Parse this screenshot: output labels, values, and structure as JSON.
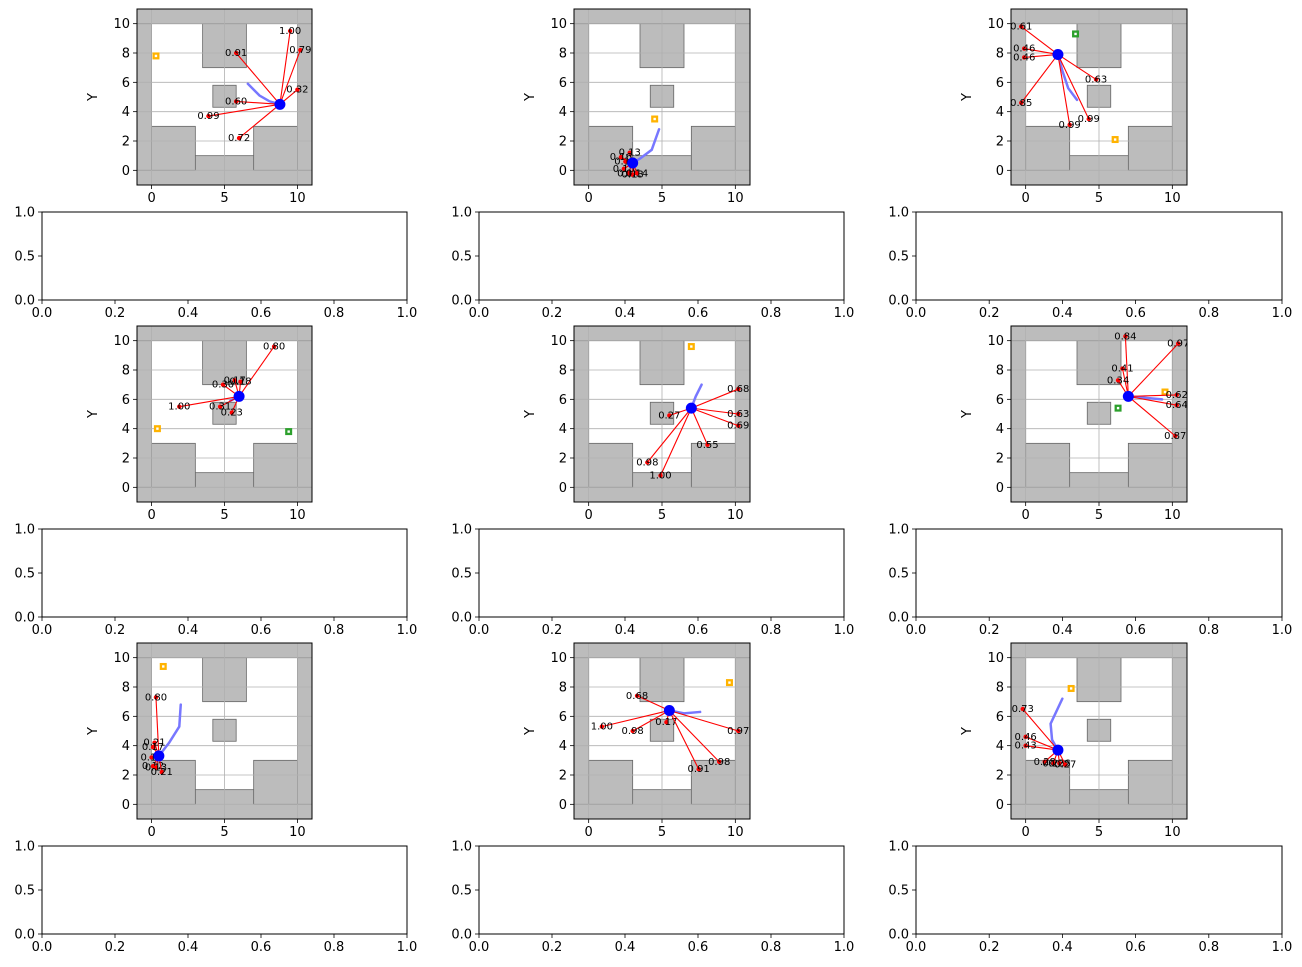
{
  "figure": {
    "colors": {
      "obstacle": "#bcbcbc",
      "obstacle_edge": "#666666",
      "robot": "#0000ff",
      "ray": "#ff0000",
      "trail": "#7777ff",
      "goal": "#ffb300",
      "goal_alt": "#2ca02c",
      "grid": "#b0b0b0"
    },
    "obstacles_common": [
      [
        -1,
        -1,
        12,
        1
      ],
      [
        -1,
        10,
        12,
        11
      ],
      [
        -1,
        0,
        0,
        10
      ],
      [
        10,
        0,
        11,
        10
      ],
      [
        0,
        0,
        3,
        3
      ],
      [
        7,
        0,
        10,
        3
      ],
      [
        3.5,
        7,
        6.5,
        10
      ],
      [
        4.2,
        4.3,
        5.8,
        5.8
      ]
    ]
  },
  "chart_data": [
    {
      "type": "scatter",
      "ylabel": "Y",
      "xlim": [
        -1,
        11
      ],
      "ylim": [
        -1,
        11
      ],
      "xticks": [
        "0",
        "5",
        "10"
      ],
      "yticks": [
        "0",
        "2",
        "4",
        "6",
        "8",
        "10"
      ],
      "grid": true,
      "robot": [
        8.8,
        4.5
      ],
      "goals": [
        {
          "x": 0.3,
          "y": 7.8,
          "color": "goal"
        }
      ],
      "trail": [
        [
          6.6,
          5.9
        ],
        [
          7.4,
          5.1
        ],
        [
          8.1,
          4.7
        ],
        [
          8.8,
          4.5
        ]
      ],
      "rays": [
        {
          "x": 9.5,
          "y": 9.5,
          "label": "1.00"
        },
        {
          "x": 5.8,
          "y": 8.0,
          "label": "0.91"
        },
        {
          "x": 10.2,
          "y": 8.2,
          "label": "0.79"
        },
        {
          "x": 10.0,
          "y": 5.5,
          "label": "0.32"
        },
        {
          "x": 5.8,
          "y": 4.7,
          "label": "0.60"
        },
        {
          "x": 3.9,
          "y": 3.7,
          "label": "0.99"
        },
        {
          "x": 6.0,
          "y": 2.2,
          "label": "0.72"
        }
      ]
    },
    {
      "type": "empty",
      "xlim": [
        0,
        1
      ],
      "ylim": [
        0,
        1
      ],
      "xticks": [
        "0.0",
        "0.2",
        "0.4",
        "0.6",
        "0.8",
        "1.0"
      ],
      "yticks": [
        "0.0",
        "0.5",
        "1.0"
      ]
    },
    {
      "type": "scatter",
      "ylabel": "Y",
      "xlim": [
        -1,
        11
      ],
      "ylim": [
        -1,
        11
      ],
      "xticks": [
        "0",
        "5",
        "10"
      ],
      "yticks": [
        "0",
        "2",
        "4",
        "6",
        "8",
        "10"
      ],
      "grid": true,
      "robot": [
        3.0,
        0.5
      ],
      "goals": [
        {
          "x": 4.5,
          "y": 3.5,
          "color": "goal"
        }
      ],
      "trail": [
        [
          4.8,
          2.8
        ],
        [
          4.3,
          1.4
        ],
        [
          3.5,
          0.8
        ],
        [
          3.0,
          0.5
        ]
      ],
      "rays": [
        {
          "x": 2.8,
          "y": 1.2,
          "label": "0.13"
        },
        {
          "x": 2.2,
          "y": 0.9,
          "label": "0.16"
        },
        {
          "x": 2.5,
          "y": 0.6,
          "label": "0.13"
        },
        {
          "x": 2.4,
          "y": 0.1,
          "label": "0.15"
        },
        {
          "x": 2.7,
          "y": -0.2,
          "label": "0.14"
        },
        {
          "x": 3.0,
          "y": -0.3,
          "label": "0.13"
        },
        {
          "x": 3.3,
          "y": -0.2,
          "label": "0.14"
        }
      ]
    },
    {
      "type": "empty",
      "xlim": [
        0,
        1
      ],
      "ylim": [
        0,
        1
      ],
      "xticks": [
        "0.0",
        "0.2",
        "0.4",
        "0.6",
        "0.8",
        "1.0"
      ],
      "yticks": [
        "0.0",
        "0.5",
        "1.0"
      ]
    },
    {
      "type": "scatter",
      "ylabel": "Y",
      "xlim": [
        -1,
        11
      ],
      "ylim": [
        -1,
        11
      ],
      "xticks": [
        "0",
        "5",
        "10"
      ],
      "yticks": [
        "0",
        "2",
        "4",
        "6",
        "8",
        "10"
      ],
      "grid": true,
      "robot": [
        2.2,
        7.9
      ],
      "goals": [
        {
          "x": 3.4,
          "y": 9.3,
          "color": "goal_alt"
        },
        {
          "x": 6.1,
          "y": 2.1,
          "color": "goal"
        }
      ],
      "trail": [
        [
          3.5,
          4.8
        ],
        [
          2.9,
          5.6
        ],
        [
          2.5,
          6.8
        ],
        [
          2.2,
          7.9
        ]
      ],
      "rays": [
        {
          "x": -0.3,
          "y": 9.8,
          "label": "0.61"
        },
        {
          "x": -0.1,
          "y": 8.3,
          "label": "0.46"
        },
        {
          "x": -0.1,
          "y": 7.7,
          "label": "0.46"
        },
        {
          "x": 4.8,
          "y": 6.2,
          "label": "0.63"
        },
        {
          "x": -0.3,
          "y": 4.6,
          "label": "0.85"
        },
        {
          "x": 4.3,
          "y": 3.5,
          "label": "0.99"
        },
        {
          "x": 3.0,
          "y": 3.1,
          "label": "0.99"
        }
      ]
    },
    {
      "type": "empty",
      "xlim": [
        0,
        1
      ],
      "ylim": [
        0,
        1
      ],
      "xticks": [
        "0.0",
        "0.2",
        "0.4",
        "0.6",
        "0.8",
        "1.0"
      ],
      "yticks": [
        "0.0",
        "0.5",
        "1.0"
      ]
    },
    {
      "type": "scatter",
      "ylabel": "Y",
      "xlim": [
        -1,
        11
      ],
      "ylim": [
        -1,
        11
      ],
      "xticks": [
        "0",
        "5",
        "10"
      ],
      "yticks": [
        "0",
        "2",
        "4",
        "6",
        "8",
        "10"
      ],
      "grid": true,
      "robot": [
        6.0,
        6.2
      ],
      "goals": [
        {
          "x": 0.4,
          "y": 4.0,
          "color": "goal"
        },
        {
          "x": 9.4,
          "y": 3.8,
          "color": "goal_alt"
        }
      ],
      "trail": [
        [
          5.4,
          5.9
        ],
        [
          5.8,
          6.1
        ],
        [
          6.0,
          6.2
        ]
      ],
      "rays": [
        {
          "x": 8.4,
          "y": 9.6,
          "label": "0.80"
        },
        {
          "x": 4.9,
          "y": 7.0,
          "label": "0.30"
        },
        {
          "x": 5.7,
          "y": 7.3,
          "label": "0.17"
        },
        {
          "x": 6.1,
          "y": 7.2,
          "label": "0.18"
        },
        {
          "x": 1.9,
          "y": 5.5,
          "label": "1.00"
        },
        {
          "x": 4.7,
          "y": 5.5,
          "label": "0.31"
        },
        {
          "x": 5.5,
          "y": 5.1,
          "label": "0.23"
        }
      ]
    },
    {
      "type": "empty",
      "xlim": [
        0,
        1
      ],
      "ylim": [
        0,
        1
      ],
      "xticks": [
        "0.0",
        "0.2",
        "0.4",
        "0.6",
        "0.8",
        "1.0"
      ],
      "yticks": [
        "0.0",
        "0.5",
        "1.0"
      ]
    },
    {
      "type": "scatter",
      "ylabel": "Y",
      "xlim": [
        -1,
        11
      ],
      "ylim": [
        -1,
        11
      ],
      "xticks": [
        "0",
        "5",
        "10"
      ],
      "yticks": [
        "0",
        "2",
        "4",
        "6",
        "8",
        "10"
      ],
      "grid": true,
      "robot": [
        7.0,
        5.4
      ],
      "goals": [
        {
          "x": 7.0,
          "y": 9.6,
          "color": "goal"
        }
      ],
      "trail": [
        [
          7.7,
          7.0
        ],
        [
          7.3,
          6.2
        ],
        [
          7.0,
          5.4
        ]
      ],
      "rays": [
        {
          "x": 10.2,
          "y": 6.7,
          "label": "0.68"
        },
        {
          "x": 5.5,
          "y": 4.9,
          "label": "0.27"
        },
        {
          "x": 10.2,
          "y": 5.0,
          "label": "0.63"
        },
        {
          "x": 10.2,
          "y": 4.2,
          "label": "0.69"
        },
        {
          "x": 8.1,
          "y": 2.9,
          "label": "0.55"
        },
        {
          "x": 4.0,
          "y": 1.7,
          "label": "0.98"
        },
        {
          "x": 4.9,
          "y": 0.8,
          "label": "1.00"
        }
      ]
    },
    {
      "type": "empty",
      "xlim": [
        0,
        1
      ],
      "ylim": [
        0,
        1
      ],
      "xticks": [
        "0.0",
        "0.2",
        "0.4",
        "0.6",
        "0.8",
        "1.0"
      ],
      "yticks": [
        "0.0",
        "0.5",
        "1.0"
      ]
    },
    {
      "type": "scatter",
      "ylabel": "Y",
      "xlim": [
        -1,
        11
      ],
      "ylim": [
        -1,
        11
      ],
      "xticks": [
        "0",
        "5",
        "10"
      ],
      "yticks": [
        "0",
        "2",
        "4",
        "6",
        "8",
        "10"
      ],
      "grid": true,
      "robot": [
        7.0,
        6.2
      ],
      "goals": [
        {
          "x": 9.5,
          "y": 6.5,
          "color": "goal"
        },
        {
          "x": 6.3,
          "y": 5.4,
          "color": "goal_alt"
        }
      ],
      "trail": [
        [
          9.3,
          6.0
        ],
        [
          8.2,
          6.1
        ],
        [
          7.0,
          6.2
        ]
      ],
      "rays": [
        {
          "x": 6.8,
          "y": 10.3,
          "label": "0.84"
        },
        {
          "x": 10.4,
          "y": 9.8,
          "label": "0.97"
        },
        {
          "x": 6.6,
          "y": 8.1,
          "label": "0.41"
        },
        {
          "x": 6.3,
          "y": 7.3,
          "label": "0.34"
        },
        {
          "x": 10.3,
          "y": 6.3,
          "label": "0.62"
        },
        {
          "x": 10.3,
          "y": 5.6,
          "label": "0.64"
        },
        {
          "x": 10.2,
          "y": 3.5,
          "label": "0.87"
        }
      ]
    },
    {
      "type": "empty",
      "xlim": [
        0,
        1
      ],
      "ylim": [
        0,
        1
      ],
      "xticks": [
        "0.0",
        "0.2",
        "0.4",
        "0.6",
        "0.8",
        "1.0"
      ],
      "yticks": [
        "0.0",
        "0.5",
        "1.0"
      ]
    },
    {
      "type": "scatter",
      "ylabel": "Y",
      "xlim": [
        -1,
        11
      ],
      "ylim": [
        -1,
        11
      ],
      "xticks": [
        "0",
        "5",
        "10"
      ],
      "yticks": [
        "0",
        "2",
        "4",
        "6",
        "8",
        "10"
      ],
      "grid": true,
      "robot": [
        0.5,
        3.3
      ],
      "goals": [
        {
          "x": 0.8,
          "y": 9.4,
          "color": "goal"
        }
      ],
      "trail": [
        [
          2.0,
          6.8
        ],
        [
          1.9,
          5.3
        ],
        [
          1.2,
          4.2
        ],
        [
          0.5,
          3.3
        ]
      ],
      "rays": [
        {
          "x": 0.3,
          "y": 7.3,
          "label": "0.80"
        },
        {
          "x": 0.2,
          "y": 4.2,
          "label": "0.21"
        },
        {
          "x": 0.1,
          "y": 3.9,
          "label": "0.17"
        },
        {
          "x": 0.0,
          "y": 3.2,
          "label": "0.11"
        },
        {
          "x": 0.1,
          "y": 2.6,
          "label": "0.12"
        },
        {
          "x": 0.3,
          "y": 2.5,
          "label": "0.13"
        },
        {
          "x": 0.7,
          "y": 2.2,
          "label": "0.21"
        }
      ]
    },
    {
      "type": "empty",
      "xlim": [
        0,
        1
      ],
      "ylim": [
        0,
        1
      ],
      "xticks": [
        "0.0",
        "0.2",
        "0.4",
        "0.6",
        "0.8",
        "1.0"
      ],
      "yticks": [
        "0.0",
        "0.5",
        "1.0"
      ]
    },
    {
      "type": "scatter",
      "ylabel": "Y",
      "xlim": [
        -1,
        11
      ],
      "ylim": [
        -1,
        11
      ],
      "xticks": [
        "0",
        "5",
        "10"
      ],
      "yticks": [
        "0",
        "2",
        "4",
        "6",
        "8",
        "10"
      ],
      "grid": true,
      "robot": [
        5.5,
        6.4
      ],
      "goals": [
        {
          "x": 9.6,
          "y": 8.3,
          "color": "goal"
        }
      ],
      "trail": [
        [
          7.6,
          6.3
        ],
        [
          6.5,
          6.2
        ],
        [
          5.5,
          6.4
        ]
      ],
      "rays": [
        {
          "x": 3.3,
          "y": 7.4,
          "label": "0.68"
        },
        {
          "x": 0.9,
          "y": 5.3,
          "label": "1.00"
        },
        {
          "x": 3.0,
          "y": 5.0,
          "label": "0.98"
        },
        {
          "x": 5.3,
          "y": 5.6,
          "label": "0.17"
        },
        {
          "x": 10.2,
          "y": 5.0,
          "label": "0.97"
        },
        {
          "x": 8.9,
          "y": 2.9,
          "label": "0.98"
        },
        {
          "x": 7.5,
          "y": 2.4,
          "label": "0.91"
        }
      ]
    },
    {
      "type": "empty",
      "xlim": [
        0,
        1
      ],
      "ylim": [
        0,
        1
      ],
      "xticks": [
        "0.0",
        "0.2",
        "0.4",
        "0.6",
        "0.8",
        "1.0"
      ],
      "yticks": [
        "0.0",
        "0.5",
        "1.0"
      ]
    },
    {
      "type": "scatter",
      "ylabel": "Y",
      "xlim": [
        -1,
        11
      ],
      "ylim": [
        -1,
        11
      ],
      "xticks": [
        "0",
        "5",
        "10"
      ],
      "yticks": [
        "0",
        "2",
        "4",
        "6",
        "8",
        "10"
      ],
      "grid": true,
      "robot": [
        2.2,
        3.7
      ],
      "goals": [
        {
          "x": 3.1,
          "y": 7.9,
          "color": "goal"
        }
      ],
      "trail": [
        [
          2.5,
          7.2
        ],
        [
          1.7,
          5.5
        ],
        [
          1.8,
          4.4
        ],
        [
          2.2,
          3.7
        ]
      ],
      "rays": [
        {
          "x": -0.2,
          "y": 6.5,
          "label": "0.73"
        },
        {
          "x": 0.0,
          "y": 4.6,
          "label": "0.46"
        },
        {
          "x": 0.0,
          "y": 4.0,
          "label": "0.43"
        },
        {
          "x": 1.3,
          "y": 2.9,
          "label": "0.28"
        },
        {
          "x": 1.9,
          "y": 2.8,
          "label": "0.26"
        },
        {
          "x": 2.3,
          "y": 2.8,
          "label": "0.26"
        },
        {
          "x": 2.7,
          "y": 2.7,
          "label": "0.27"
        }
      ]
    },
    {
      "type": "empty",
      "xlim": [
        0,
        1
      ],
      "ylim": [
        0,
        1
      ],
      "xticks": [
        "0.0",
        "0.2",
        "0.4",
        "0.6",
        "0.8",
        "1.0"
      ],
      "yticks": [
        "0.0",
        "0.5",
        "1.0"
      ]
    }
  ]
}
